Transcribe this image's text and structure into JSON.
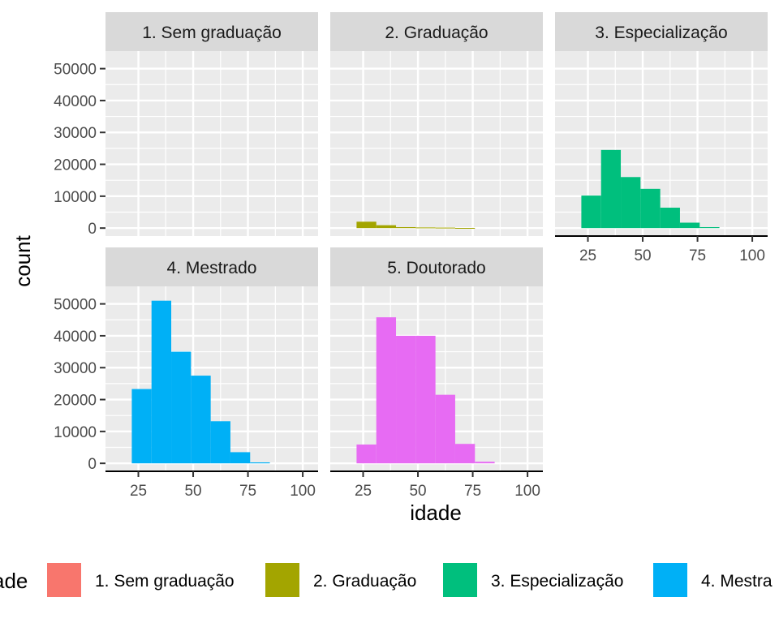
{
  "chart_data": {
    "type": "histogram-facets",
    "xlabel": "idade",
    "ylabel": "count",
    "legend_title": "ade",
    "legend_position": "bottom",
    "grid": true,
    "x_ticks": [
      25,
      50,
      75,
      100
    ],
    "y_ticks": [
      0,
      10000,
      20000,
      30000,
      40000,
      50000
    ],
    "xlim": [
      10,
      107
    ],
    "ylim": [
      -2500,
      55500
    ],
    "bin_width": 9,
    "bin_starts": [
      22,
      31,
      40,
      49,
      58,
      67,
      76
    ],
    "facets": [
      {
        "name": "1. Sem graduação",
        "color": "#F8766D",
        "values": [
          0,
          0,
          0,
          0,
          0,
          0,
          0
        ]
      },
      {
        "name": "2. Graduação",
        "color": "#A3A500",
        "values": [
          2000,
          900,
          300,
          200,
          150,
          50,
          0
        ]
      },
      {
        "name": "3. Especialização",
        "color": "#00BF7D",
        "values": [
          10200,
          24500,
          16000,
          12300,
          6400,
          1700,
          300
        ]
      },
      {
        "name": "4. Mestrado",
        "color": "#00B0F6",
        "values": [
          23300,
          51000,
          35000,
          27500,
          13200,
          3500,
          300
        ]
      },
      {
        "name": "5. Doutorado",
        "color": "#E76BF3",
        "values": [
          5900,
          45800,
          40000,
          40000,
          21500,
          6100,
          500
        ]
      }
    ],
    "legend": [
      {
        "label": "1. Sem graduação",
        "color": "#F8766D"
      },
      {
        "label": "2. Graduação",
        "color": "#A3A500"
      },
      {
        "label": "3. Especialização",
        "color": "#00BF7D"
      },
      {
        "label": "4. Mestra",
        "color": "#00B0F6"
      }
    ]
  }
}
